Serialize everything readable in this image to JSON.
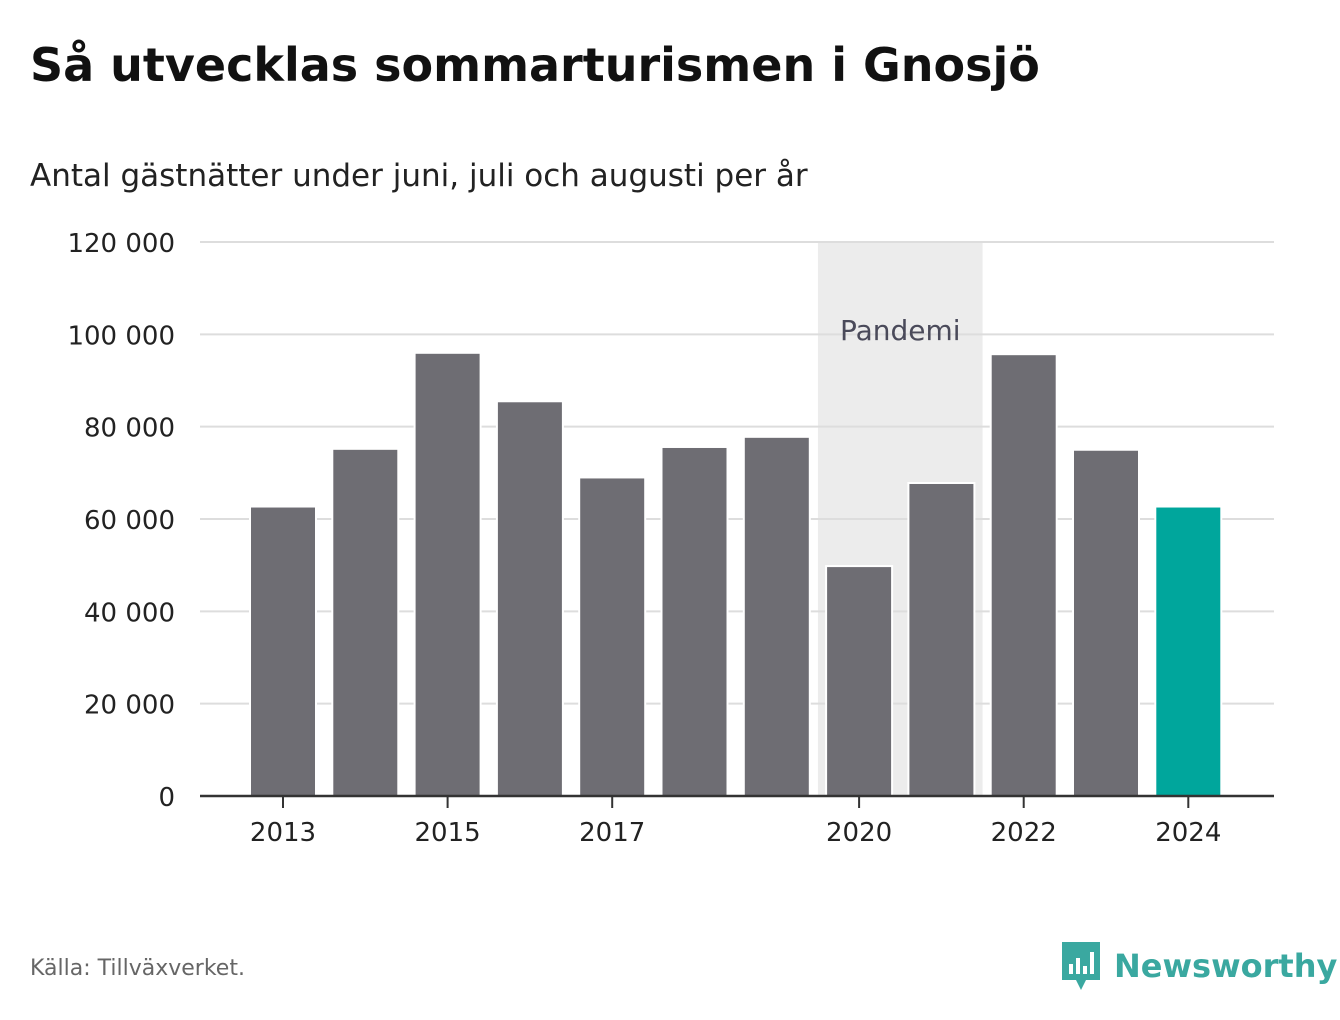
{
  "title": "Så utvecklas sommarturismen i Gnosjö",
  "subtitle": "Antal gästnätter under juni, juli och augusti per år",
  "source": "Källa: Tillväxverket.",
  "brand": {
    "name": "Newsworthy",
    "color": "#3aa8a0"
  },
  "chart_data": {
    "type": "bar",
    "categories": [
      "2013",
      "2014",
      "2015",
      "2016",
      "2017",
      "2018",
      "2019",
      "2020",
      "2021",
      "2022",
      "2023",
      "2024"
    ],
    "values": [
      62700,
      75200,
      96000,
      85500,
      69000,
      75600,
      77800,
      49800,
      67800,
      95700,
      75000,
      62700
    ],
    "x_tick_labels": [
      "2013",
      "2015",
      "2017",
      "2020",
      "2022",
      "2024"
    ],
    "y_ticks": [
      0,
      20000,
      40000,
      60000,
      80000,
      100000,
      120000
    ],
    "y_tick_labels": [
      "0",
      "20 000",
      "40 000",
      "60 000",
      "80 000",
      "100 000",
      "120 000"
    ],
    "ylim": [
      0,
      120000
    ],
    "highlight_category": "2024",
    "colors": {
      "bar": "#6e6d73",
      "highlight": "#00a69c",
      "shade": "#ececec",
      "grid": "#dddddd",
      "axis": "#333333"
    },
    "annotation": {
      "label": "Pandemi",
      "start": "2020",
      "end": "2021"
    },
    "grid": true,
    "xlabel": "",
    "ylabel": ""
  }
}
